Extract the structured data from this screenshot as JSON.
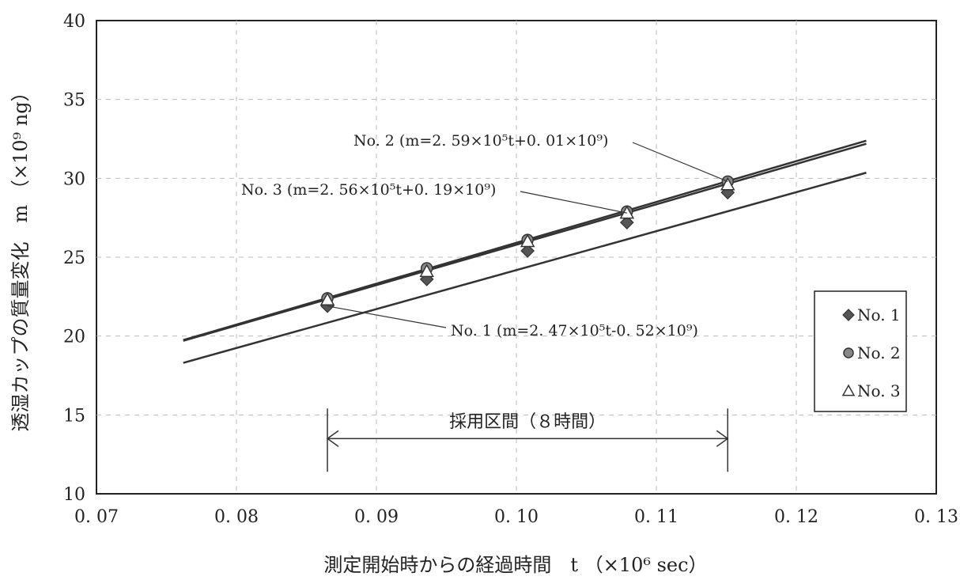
{
  "chart_data": {
    "type": "line",
    "xlabel": "測定開始時からの経過時間　t （×10⁶ sec）",
    "ylabel": "透湿カップの質量変化　m （×10⁹ ng）",
    "xlim": [
      0.07,
      0.13
    ],
    "ylim": [
      10,
      40
    ],
    "xticks": [
      "0. 07",
      "0. 08",
      "0. 09",
      "0. 10",
      "0. 11",
      "0. 12",
      "0. 13"
    ],
    "yticks": [
      "10",
      "15",
      "20",
      "25",
      "30",
      "35",
      "40"
    ],
    "grid": "dashed",
    "legend_position": "right",
    "series": [
      {
        "name": "No. 1",
        "marker": "diamond",
        "color": "#555555",
        "x": [
          0.0865,
          0.0936,
          0.1008,
          0.1079,
          0.1151
        ],
        "y": [
          21.9,
          23.6,
          25.4,
          27.2,
          29.1
        ],
        "fit": {
          "slope": 2.47,
          "intercept": -0.52,
          "x_range": [
            0.0762,
            0.125
          ]
        },
        "equation": "No. 1 (m=2. 47×10⁵t-0. 52×10⁹)"
      },
      {
        "name": "No. 2",
        "marker": "circle",
        "color": "#888888",
        "x": [
          0.0865,
          0.0936,
          0.1008,
          0.1079,
          0.1151
        ],
        "y": [
          22.4,
          24.3,
          26.1,
          27.9,
          29.8
        ],
        "fit": {
          "slope": 2.59,
          "intercept": 0.01,
          "x_range": [
            0.0762,
            0.125
          ]
        },
        "equation": "No. 2 (m=2. 59×10⁵t+0. 01×10⁹)"
      },
      {
        "name": "No. 3",
        "marker": "triangle",
        "color": "#ffffff",
        "x": [
          0.0865,
          0.0936,
          0.1008,
          0.1079,
          0.1151
        ],
        "y": [
          22.3,
          24.1,
          26.0,
          27.8,
          29.6
        ],
        "fit": {
          "slope": 2.56,
          "intercept": 0.19,
          "x_range": [
            0.0762,
            0.125
          ]
        },
        "equation": "No. 3 (m=2. 56×10⁵t+0. 19×10⁹)"
      }
    ],
    "adopted_interval": {
      "label": "採用区間（８時間）",
      "x_start": 0.0865,
      "x_end": 0.1151,
      "y": 13.5
    }
  }
}
